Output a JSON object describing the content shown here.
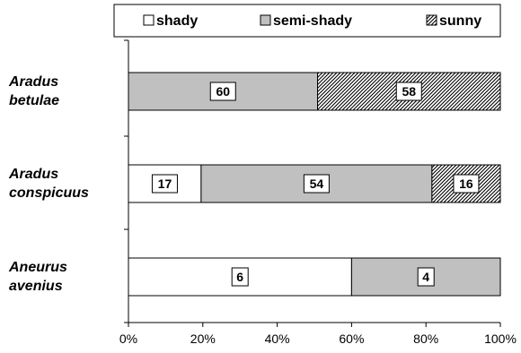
{
  "chart_data": {
    "type": "bar",
    "stacked": "percent",
    "orientation": "horizontal",
    "categories": [
      [
        "Aradus",
        "betulae"
      ],
      [
        "Aradus",
        "conspicuus"
      ],
      [
        "Aneurus",
        "avenius"
      ]
    ],
    "series": [
      {
        "name": "shady",
        "values": [
          0,
          17,
          6
        ],
        "color": "#ffffff",
        "pattern": "solid"
      },
      {
        "name": "semi-shady",
        "values": [
          60,
          54,
          4
        ],
        "color": "#c0c0c0",
        "pattern": "solid"
      },
      {
        "name": "sunny",
        "values": [
          58,
          16,
          0
        ],
        "color": "#ffffff",
        "pattern": "diagonal-hatch"
      }
    ],
    "x_ticks": [
      "0%",
      "20%",
      "40%",
      "60%",
      "80%",
      "100%"
    ],
    "xlim": [
      0,
      100
    ],
    "legend": "top",
    "grid": false
  }
}
